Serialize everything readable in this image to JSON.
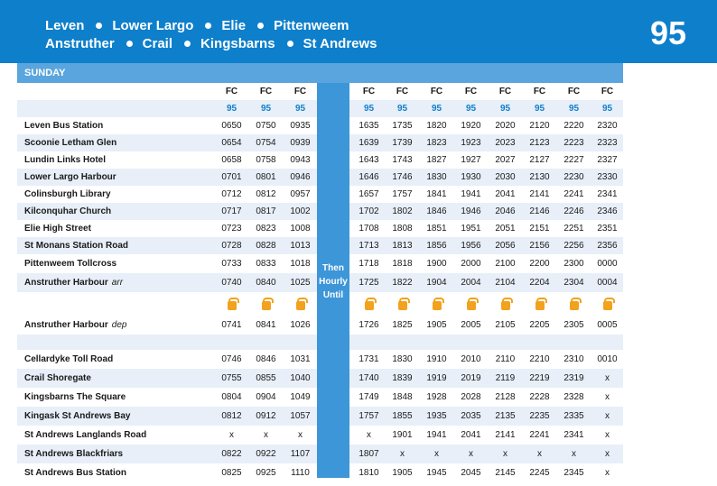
{
  "route": {
    "number": "95",
    "line1": [
      "Leven",
      "Lower Largo",
      "Elie",
      "Pittenweem"
    ],
    "line2": [
      "Anstruther",
      "Crail",
      "Kingsbarns",
      "St Andrews"
    ]
  },
  "day": "SUNDAY",
  "then_text": [
    "Then",
    "Hourly",
    "Until"
  ],
  "operators": [
    "FC",
    "FC",
    "FC",
    "FC",
    "FC",
    "FC",
    "FC",
    "FC",
    "FC",
    "FC",
    "FC"
  ],
  "services": [
    "95",
    "95",
    "95",
    "95",
    "95",
    "95",
    "95",
    "95",
    "95",
    "95",
    "95"
  ],
  "stops": [
    {
      "name": "Leven Bus Station",
      "note": "",
      "times": [
        "0650",
        "0750",
        "0935",
        "1635",
        "1735",
        "1820",
        "1920",
        "2020",
        "2120",
        "2220",
        "2320"
      ]
    },
    {
      "name": "Scoonie Letham Glen",
      "note": "",
      "times": [
        "0654",
        "0754",
        "0939",
        "1639",
        "1739",
        "1823",
        "1923",
        "2023",
        "2123",
        "2223",
        "2323"
      ]
    },
    {
      "name": "Lundin Links Hotel",
      "note": "",
      "times": [
        "0658",
        "0758",
        "0943",
        "1643",
        "1743",
        "1827",
        "1927",
        "2027",
        "2127",
        "2227",
        "2327"
      ]
    },
    {
      "name": "Lower Largo Harbour",
      "note": "",
      "times": [
        "0701",
        "0801",
        "0946",
        "1646",
        "1746",
        "1830",
        "1930",
        "2030",
        "2130",
        "2230",
        "2330"
      ]
    },
    {
      "name": "Colinsburgh Library",
      "note": "",
      "times": [
        "0712",
        "0812",
        "0957",
        "1657",
        "1757",
        "1841",
        "1941",
        "2041",
        "2141",
        "2241",
        "2341"
      ]
    },
    {
      "name": "Kilconquhar Church",
      "note": "",
      "times": [
        "0717",
        "0817",
        "1002",
        "1702",
        "1802",
        "1846",
        "1946",
        "2046",
        "2146",
        "2246",
        "2346"
      ]
    },
    {
      "name": "Elie High Street",
      "note": "",
      "times": [
        "0723",
        "0823",
        "1008",
        "1708",
        "1808",
        "1851",
        "1951",
        "2051",
        "2151",
        "2251",
        "2351"
      ]
    },
    {
      "name": "St Monans Station Road",
      "note": "",
      "times": [
        "0728",
        "0828",
        "1013",
        "1713",
        "1813",
        "1856",
        "1956",
        "2056",
        "2156",
        "2256",
        "2356"
      ]
    },
    {
      "name": "Pittenweem Tollcross",
      "note": "",
      "times": [
        "0733",
        "0833",
        "1018",
        "1718",
        "1818",
        "1900",
        "2000",
        "2100",
        "2200",
        "2300",
        "0000"
      ]
    },
    {
      "name": "Anstruther Harbour",
      "note": "arr",
      "times": [
        "0740",
        "0840",
        "1025",
        "1725",
        "1822",
        "1904",
        "2004",
        "2104",
        "2204",
        "2304",
        "0004"
      ]
    },
    {
      "name": "Anstruther Harbour",
      "note": "dep",
      "times": [
        "0741",
        "0841",
        "1026",
        "1726",
        "1825",
        "1905",
        "2005",
        "2105",
        "2205",
        "2305",
        "0005"
      ]
    },
    {
      "name": "Cellardyke Toll Road",
      "note": "",
      "times": [
        "0746",
        "0846",
        "1031",
        "1731",
        "1830",
        "1910",
        "2010",
        "2110",
        "2210",
        "2310",
        "0010"
      ]
    },
    {
      "name": "Crail Shoregate",
      "note": "",
      "times": [
        "0755",
        "0855",
        "1040",
        "1740",
        "1839",
        "1919",
        "2019",
        "2119",
        "2219",
        "2319",
        "x"
      ]
    },
    {
      "name": "Kingsbarns The Square",
      "note": "",
      "times": [
        "0804",
        "0904",
        "1049",
        "1749",
        "1848",
        "1928",
        "2028",
        "2128",
        "2228",
        "2328",
        "x"
      ]
    },
    {
      "name": "Kingask St Andrews Bay",
      "note": "",
      "times": [
        "0812",
        "0912",
        "1057",
        "1757",
        "1855",
        "1935",
        "2035",
        "2135",
        "2235",
        "2335",
        "x"
      ]
    },
    {
      "name": "St Andrews Langlands Road",
      "note": "",
      "times": [
        "x",
        "x",
        "x",
        "x",
        "1901",
        "1941",
        "2041",
        "2141",
        "2241",
        "2341",
        "x"
      ]
    },
    {
      "name": "St Andrews Blackfriars",
      "note": "",
      "times": [
        "0822",
        "0922",
        "1107",
        "1807",
        "x",
        "x",
        "x",
        "x",
        "x",
        "x",
        "x"
      ]
    },
    {
      "name": "St Andrews Bus Station",
      "note": "",
      "times": [
        "0825",
        "0925",
        "1110",
        "1810",
        "1905",
        "1945",
        "2045",
        "2145",
        "2245",
        "2345",
        "x"
      ]
    }
  ],
  "colors": {
    "banner": "#0e7fcb",
    "day_bar": "#5aa5dd",
    "then_col": "#3d96d8",
    "shade": "#e8eff8",
    "kettle": "#f2a21c"
  }
}
